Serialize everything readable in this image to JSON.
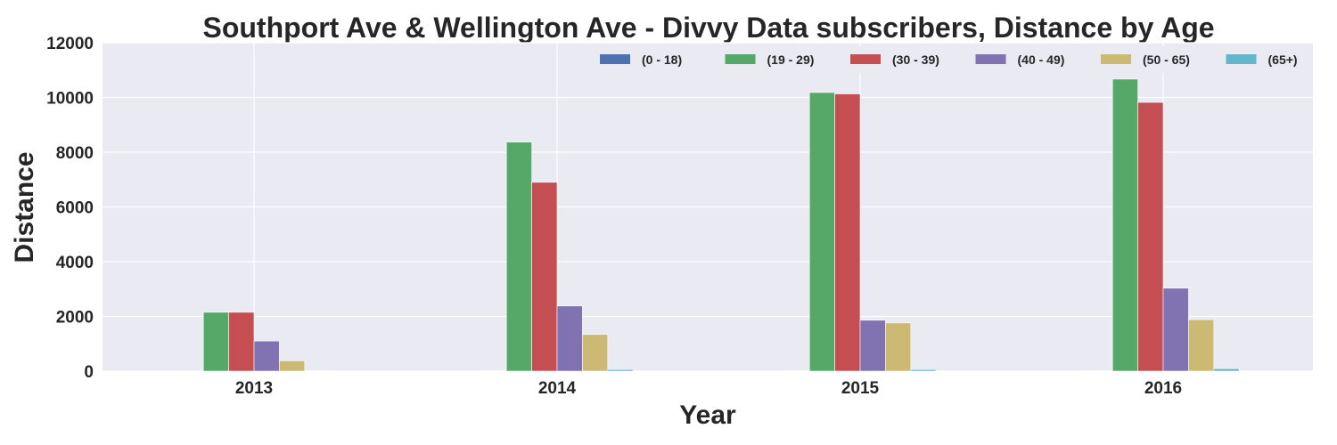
{
  "chart_data": {
    "type": "bar",
    "title": "Southport Ave & Wellington Ave - Divvy Data subscribers, Distance by Age",
    "xlabel": "Year",
    "ylabel": "Distance",
    "categories": [
      "2013",
      "2014",
      "2015",
      "2016"
    ],
    "ylim": [
      0,
      12000
    ],
    "yticks": [
      "0",
      "2000",
      "4000",
      "6000",
      "8000",
      "10000",
      "12000"
    ],
    "grid": true,
    "legend_position": "top-right",
    "background": "#EAEAF2",
    "series": [
      {
        "name": "(0 - 18)",
        "color": "#4C72B0",
        "values": [
          0,
          15,
          15,
          20
        ]
      },
      {
        "name": "(19 - 29)",
        "color": "#55A868",
        "values": [
          2150,
          8370,
          10180,
          10670
        ]
      },
      {
        "name": "(30 - 39)",
        "color": "#C44E52",
        "values": [
          2150,
          6900,
          10130,
          9820
        ]
      },
      {
        "name": "(40 - 49)",
        "color": "#8172B2",
        "values": [
          1100,
          2380,
          1860,
          3030
        ]
      },
      {
        "name": "(50 - 65)",
        "color": "#CCB974",
        "values": [
          380,
          1340,
          1760,
          1880
        ]
      },
      {
        "name": "(65+)",
        "color": "#64B5CD",
        "values": [
          20,
          60,
          60,
          90
        ]
      }
    ]
  }
}
